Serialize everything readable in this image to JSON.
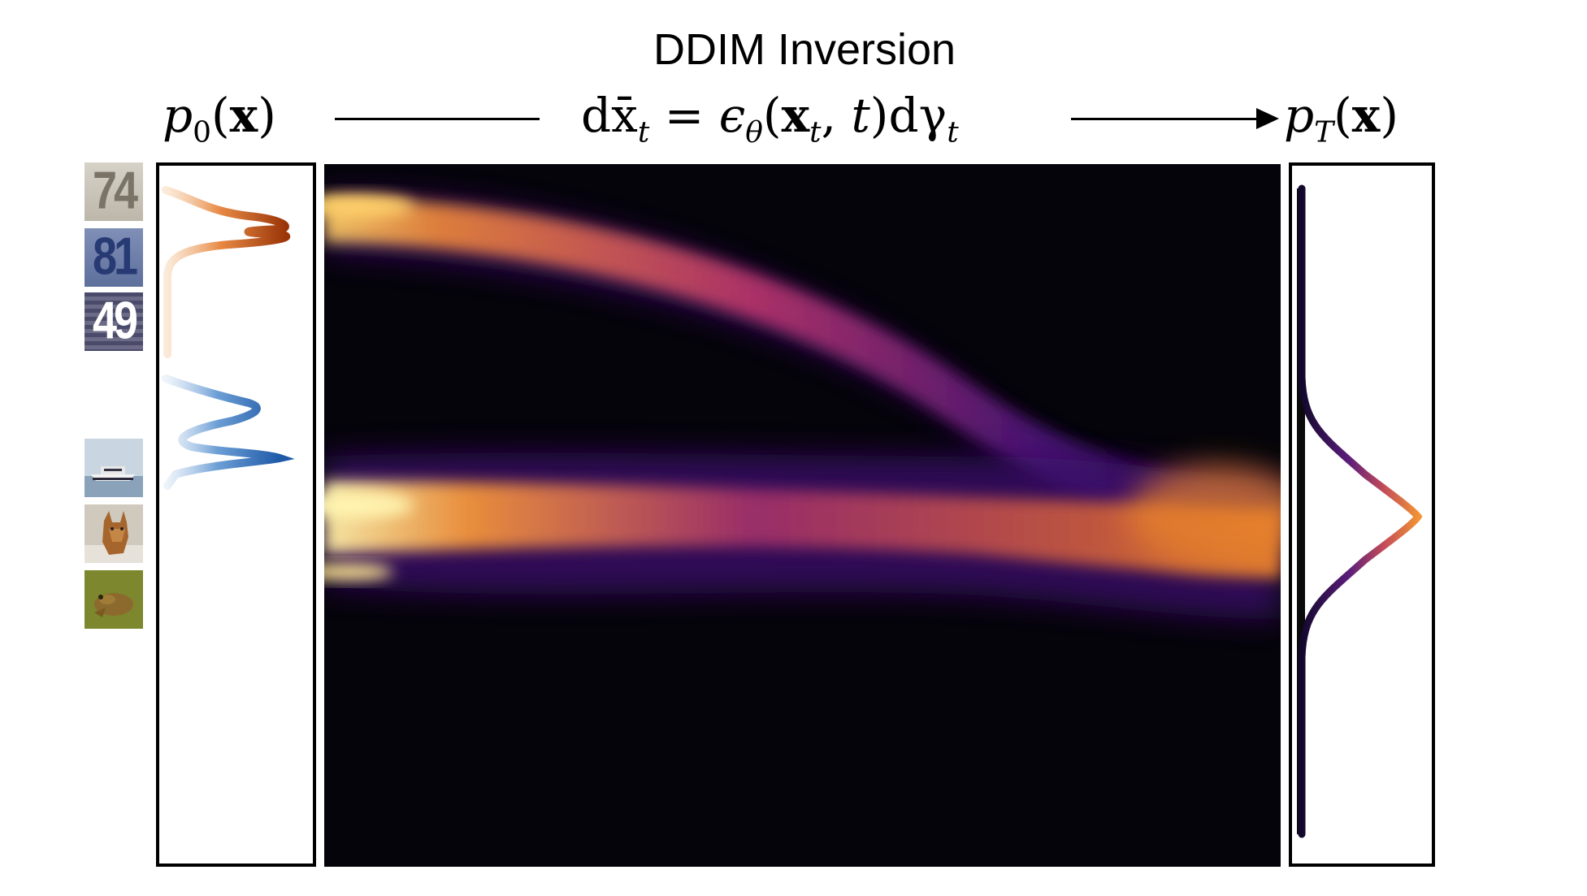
{
  "title": "DDIM Inversion",
  "left_dist": {
    "fn": "p",
    "sub": "0",
    "arg": "x"
  },
  "right_dist": {
    "fn": "p",
    "sub": "T",
    "arg": "x"
  },
  "equation": {
    "lhs": "dx̄",
    "lhs_sub": "t",
    "eq": "=",
    "eps": "ϵ",
    "eps_sub": "θ",
    "arg1": "x",
    "arg1_sub": "t",
    "arg2": "t",
    "tail": "dγ",
    "tail_sub": "t"
  },
  "thumbnails": [
    {
      "kind": "digit",
      "text": "74"
    },
    {
      "kind": "digit",
      "text": "81"
    },
    {
      "kind": "digit",
      "text": "49"
    },
    {
      "kind": "photo",
      "subject": "boat"
    },
    {
      "kind": "photo",
      "subject": "dog"
    },
    {
      "kind": "photo",
      "subject": "frog"
    }
  ],
  "colors": {
    "digits_mode": "#b9420f",
    "photos_mode": "#2e6fb8",
    "gaussian_peak": "#e07a2a",
    "gaussian_tail": "#1a0b3a",
    "heatmap_bg": "#05040a"
  }
}
